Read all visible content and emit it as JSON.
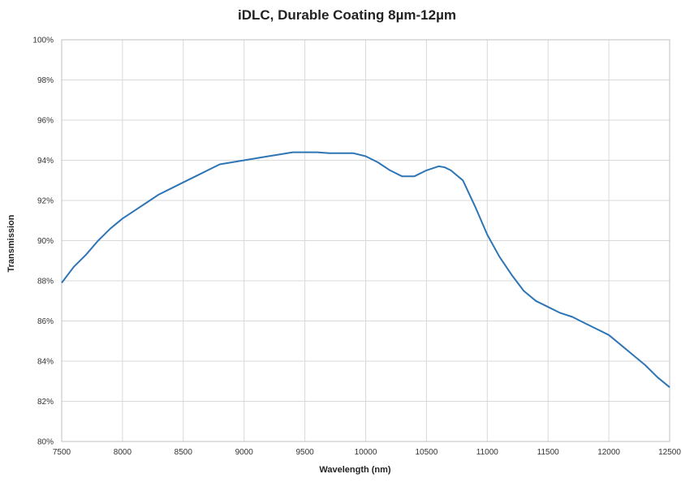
{
  "chart_data": {
    "type": "line",
    "title": "iDLC, Durable Coating 8µm-12µm",
    "xlabel": "Wavelength (nm)",
    "ylabel": "Transmission",
    "xlim": [
      7500,
      12500
    ],
    "ylim": [
      80,
      100
    ],
    "xticks": [
      "7500",
      "8000",
      "8500",
      "9000",
      "9500",
      "10000",
      "10500",
      "11000",
      "11500",
      "12000",
      "12500"
    ],
    "yticks": [
      "80%",
      "82%",
      "84%",
      "86%",
      "88%",
      "90%",
      "92%",
      "94%",
      "96%",
      "98%",
      "100%"
    ],
    "grid": true,
    "line_color": "#2e75b6",
    "series": [
      {
        "x": [
          7500,
          7600,
          7700,
          7800,
          7900,
          8000,
          8100,
          8200,
          8300,
          8400,
          8500,
          8600,
          8700,
          8800,
          8900,
          9000,
          9100,
          9200,
          9300,
          9400,
          9500,
          9600,
          9700,
          9800,
          9900,
          10000,
          10100,
          10200,
          10300,
          10400,
          10500,
          10600,
          10650,
          10700,
          10800,
          10900,
          11000,
          11100,
          11200,
          11300,
          11400,
          11500,
          11600,
          11700,
          11800,
          11900,
          12000,
          12100,
          12200,
          12300,
          12400,
          12500
        ],
        "y": [
          87.9,
          88.7,
          89.3,
          90.0,
          90.6,
          91.1,
          91.5,
          91.9,
          92.3,
          92.6,
          92.9,
          93.2,
          93.5,
          93.8,
          93.9,
          94.0,
          94.1,
          94.2,
          94.3,
          94.4,
          94.4,
          94.4,
          94.35,
          94.35,
          94.35,
          94.2,
          93.9,
          93.5,
          93.2,
          93.2,
          93.5,
          93.7,
          93.65,
          93.5,
          93.0,
          91.7,
          90.3,
          89.2,
          88.3,
          87.5,
          87.0,
          86.7,
          86.4,
          86.2,
          85.9,
          85.6,
          85.3,
          84.8,
          84.3,
          83.8,
          83.2,
          82.7
        ]
      }
    ]
  }
}
